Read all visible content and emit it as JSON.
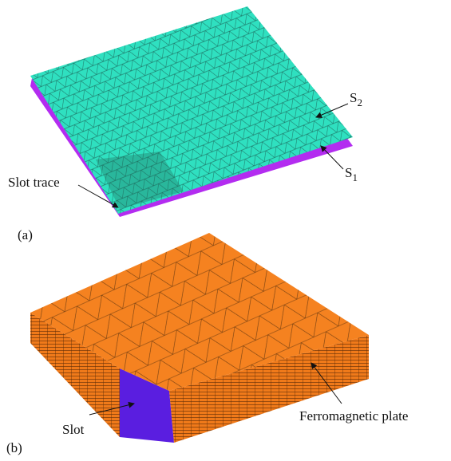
{
  "panels": [
    {
      "label": "(a)",
      "annotations": [
        {
          "base": "S",
          "sub": "2"
        },
        {
          "base": "S",
          "sub": "1"
        },
        {
          "text": "Slot trace"
        }
      ]
    },
    {
      "label": "(b)",
      "annotations": [
        {
          "text": "Slot"
        },
        {
          "text": "Ferromagnetic plate"
        }
      ]
    }
  ]
}
